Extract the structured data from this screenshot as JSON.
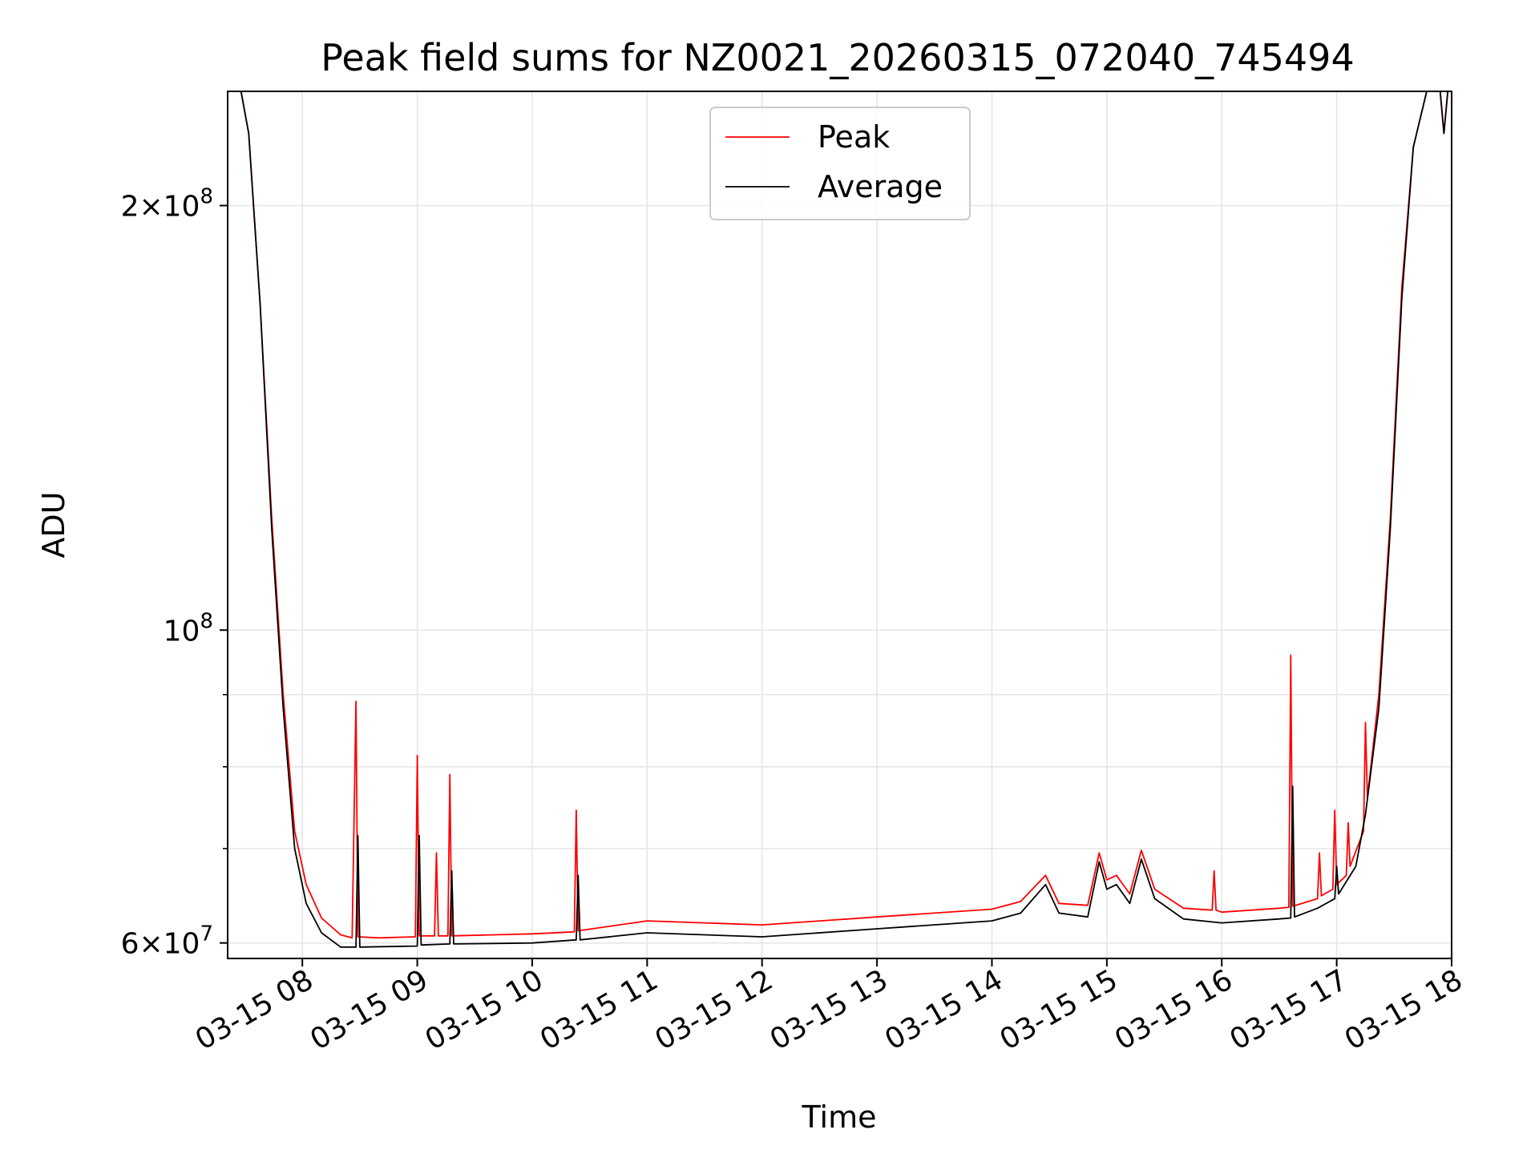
{
  "chart_data": {
    "type": "line",
    "title": "Peak field sums for NZ0021_20260315_072040_745494",
    "xlabel": "Time",
    "ylabel": "ADU",
    "x_scale": "time",
    "y_scale": "log",
    "xlim": [
      "2026-03-15 07:21",
      "2026-03-15 18:00"
    ],
    "ylim": [
      58500000,
      241000000
    ],
    "grid": true,
    "legend_position": "upper center",
    "x_ticks": [
      {
        "value": "2026-03-15 08:00",
        "label": "03-15 08"
      },
      {
        "value": "2026-03-15 09:00",
        "label": "03-15 09"
      },
      {
        "value": "2026-03-15 10:00",
        "label": "03-15 10"
      },
      {
        "value": "2026-03-15 11:00",
        "label": "03-15 11"
      },
      {
        "value": "2026-03-15 12:00",
        "label": "03-15 12"
      },
      {
        "value": "2026-03-15 13:00",
        "label": "03-15 13"
      },
      {
        "value": "2026-03-15 14:00",
        "label": "03-15 14"
      },
      {
        "value": "2026-03-15 15:00",
        "label": "03-15 15"
      },
      {
        "value": "2026-03-15 16:00",
        "label": "03-15 16"
      },
      {
        "value": "2026-03-15 17:00",
        "label": "03-15 17"
      },
      {
        "value": "2026-03-15 18:00",
        "label": "03-15 18"
      }
    ],
    "y_ticks_major": [
      {
        "value": 60000000,
        "mantissa": "6",
        "exponent": "7"
      },
      {
        "value": 100000000,
        "mantissa": "",
        "exponent": "8"
      },
      {
        "value": 200000000,
        "mantissa": "2",
        "exponent": "8"
      }
    ],
    "y_ticks_minor": [
      70000000,
      80000000,
      90000000,
      300000000
    ],
    "series": [
      {
        "name": "Peak",
        "color": "#ff0000",
        "points": [
          [
            "2026-03-15 07:21",
            241000000
          ],
          [
            "2026-03-15 07:28",
            241000000
          ],
          [
            "2026-03-15 07:32",
            225000000
          ],
          [
            "2026-03-15 07:38",
            170000000
          ],
          [
            "2026-03-15 07:44",
            120000000
          ],
          [
            "2026-03-15 07:50",
            90000000
          ],
          [
            "2026-03-15 07:56",
            72000000
          ],
          [
            "2026-03-15 08:02",
            66000000
          ],
          [
            "2026-03-15 08:10",
            62500000
          ],
          [
            "2026-03-15 08:20",
            60800000
          ],
          [
            "2026-03-15 08:26",
            60500000
          ],
          [
            "2026-03-15 08:28",
            89000000
          ],
          [
            "2026-03-15 08:29",
            60600000
          ],
          [
            "2026-03-15 08:40",
            60500000
          ],
          [
            "2026-03-15 08:59",
            60600000
          ],
          [
            "2026-03-15 09:00",
            81500000
          ],
          [
            "2026-03-15 09:01",
            60700000
          ],
          [
            "2026-03-15 09:09",
            60700000
          ],
          [
            "2026-03-15 09:10",
            69500000
          ],
          [
            "2026-03-15 09:11",
            60700000
          ],
          [
            "2026-03-15 09:16",
            60700000
          ],
          [
            "2026-03-15 09:17",
            79000000
          ],
          [
            "2026-03-15 09:18",
            60700000
          ],
          [
            "2026-03-15 10:00",
            60900000
          ],
          [
            "2026-03-15 10:22",
            61100000
          ],
          [
            "2026-03-15 10:23",
            74500000
          ],
          [
            "2026-03-15 10:24",
            61200000
          ],
          [
            "2026-03-15 11:00",
            62200000
          ],
          [
            "2026-03-15 12:00",
            61800000
          ],
          [
            "2026-03-15 13:00",
            62600000
          ],
          [
            "2026-03-15 14:00",
            63400000
          ],
          [
            "2026-03-15 14:15",
            64200000
          ],
          [
            "2026-03-15 14:28",
            67000000
          ],
          [
            "2026-03-15 14:35",
            64000000
          ],
          [
            "2026-03-15 14:50",
            63800000
          ],
          [
            "2026-03-15 14:56",
            69500000
          ],
          [
            "2026-03-15 15:00",
            66500000
          ],
          [
            "2026-03-15 15:05",
            67000000
          ],
          [
            "2026-03-15 15:12",
            65000000
          ],
          [
            "2026-03-15 15:18",
            69800000
          ],
          [
            "2026-03-15 15:25",
            65500000
          ],
          [
            "2026-03-15 15:40",
            63500000
          ],
          [
            "2026-03-15 15:55",
            63300000
          ],
          [
            "2026-03-15 15:56",
            67500000
          ],
          [
            "2026-03-15 15:57",
            63300000
          ],
          [
            "2026-03-15 16:00",
            63100000
          ],
          [
            "2026-03-15 16:30",
            63500000
          ],
          [
            "2026-03-15 16:35",
            63600000
          ],
          [
            "2026-03-15 16:36",
            96000000
          ],
          [
            "2026-03-15 16:37",
            63700000
          ],
          [
            "2026-03-15 16:50",
            64500000
          ],
          [
            "2026-03-15 16:51",
            69500000
          ],
          [
            "2026-03-15 16:52",
            64800000
          ],
          [
            "2026-03-15 16:58",
            65500000
          ],
          [
            "2026-03-15 16:59",
            74500000
          ],
          [
            "2026-03-15 17:00",
            66000000
          ],
          [
            "2026-03-15 17:05",
            67000000
          ],
          [
            "2026-03-15 17:06",
            73000000
          ],
          [
            "2026-03-15 17:07",
            68000000
          ],
          [
            "2026-03-15 17:14",
            72000000
          ],
          [
            "2026-03-15 17:15",
            86000000
          ],
          [
            "2026-03-15 17:16",
            76000000
          ],
          [
            "2026-03-15 17:22",
            90000000
          ],
          [
            "2026-03-15 17:28",
            120000000
          ],
          [
            "2026-03-15 17:34",
            175000000
          ],
          [
            "2026-03-15 17:40",
            220000000
          ],
          [
            "2026-03-15 17:47",
            241000000
          ],
          [
            "2026-03-15 17:54",
            241000000
          ],
          [
            "2026-03-15 17:56",
            225000000
          ],
          [
            "2026-03-15 17:58",
            241000000
          ],
          [
            "2026-03-15 18:00",
            241000000
          ]
        ]
      },
      {
        "name": "Average",
        "color": "#000000",
        "points": [
          [
            "2026-03-15 07:21",
            241000000
          ],
          [
            "2026-03-15 07:28",
            241000000
          ],
          [
            "2026-03-15 07:32",
            225000000
          ],
          [
            "2026-03-15 07:38",
            170000000
          ],
          [
            "2026-03-15 07:44",
            118000000
          ],
          [
            "2026-03-15 07:50",
            88000000
          ],
          [
            "2026-03-15 07:56",
            70000000
          ],
          [
            "2026-03-15 08:02",
            64000000
          ],
          [
            "2026-03-15 08:10",
            61000000
          ],
          [
            "2026-03-15 08:20",
            59600000
          ],
          [
            "2026-03-15 08:28",
            59600000
          ],
          [
            "2026-03-15 08:29",
            71500000
          ],
          [
            "2026-03-15 08:30",
            59600000
          ],
          [
            "2026-03-15 09:00",
            59700000
          ],
          [
            "2026-03-15 09:01",
            71500000
          ],
          [
            "2026-03-15 09:02",
            59800000
          ],
          [
            "2026-03-15 09:17",
            59900000
          ],
          [
            "2026-03-15 09:18",
            67500000
          ],
          [
            "2026-03-15 09:19",
            59900000
          ],
          [
            "2026-03-15 10:00",
            60000000
          ],
          [
            "2026-03-15 10:23",
            60300000
          ],
          [
            "2026-03-15 10:24",
            67000000
          ],
          [
            "2026-03-15 10:25",
            60300000
          ],
          [
            "2026-03-15 11:00",
            61000000
          ],
          [
            "2026-03-15 12:00",
            60600000
          ],
          [
            "2026-03-15 13:00",
            61400000
          ],
          [
            "2026-03-15 14:00",
            62200000
          ],
          [
            "2026-03-15 14:15",
            63000000
          ],
          [
            "2026-03-15 14:28",
            66000000
          ],
          [
            "2026-03-15 14:35",
            63000000
          ],
          [
            "2026-03-15 14:50",
            62600000
          ],
          [
            "2026-03-15 14:56",
            68500000
          ],
          [
            "2026-03-15 15:00",
            65500000
          ],
          [
            "2026-03-15 15:05",
            66000000
          ],
          [
            "2026-03-15 15:12",
            64000000
          ],
          [
            "2026-03-15 15:18",
            68800000
          ],
          [
            "2026-03-15 15:25",
            64500000
          ],
          [
            "2026-03-15 15:40",
            62400000
          ],
          [
            "2026-03-15 16:00",
            62000000
          ],
          [
            "2026-03-15 16:30",
            62400000
          ],
          [
            "2026-03-15 16:36",
            62500000
          ],
          [
            "2026-03-15 16:37",
            77500000
          ],
          [
            "2026-03-15 16:38",
            62600000
          ],
          [
            "2026-03-15 16:50",
            63500000
          ],
          [
            "2026-03-15 16:59",
            64500000
          ],
          [
            "2026-03-15 17:00",
            68000000
          ],
          [
            "2026-03-15 17:01",
            65000000
          ],
          [
            "2026-03-15 17:10",
            68000000
          ],
          [
            "2026-03-15 17:15",
            74000000
          ],
          [
            "2026-03-15 17:22",
            88000000
          ],
          [
            "2026-03-15 17:28",
            118000000
          ],
          [
            "2026-03-15 17:34",
            172000000
          ],
          [
            "2026-03-15 17:40",
            220000000
          ],
          [
            "2026-03-15 17:47",
            241000000
          ],
          [
            "2026-03-15 17:54",
            241000000
          ],
          [
            "2026-03-15 17:56",
            225000000
          ],
          [
            "2026-03-15 17:58",
            241000000
          ],
          [
            "2026-03-15 18:00",
            241000000
          ]
        ]
      }
    ]
  }
}
